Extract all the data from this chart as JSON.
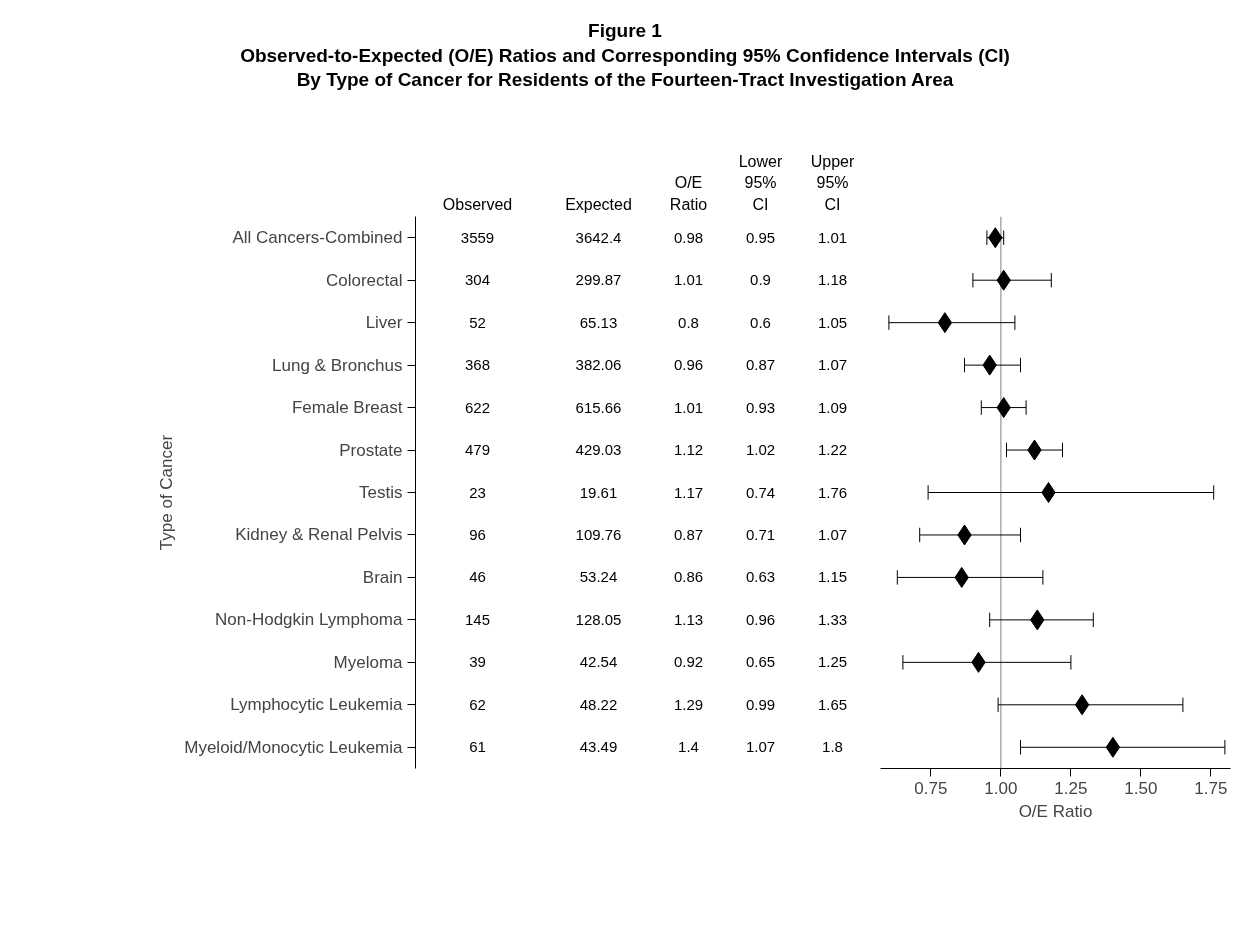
{
  "chart_data": [
    {
      "type": "other",
      "data_labels": true,
      "title": "Figure 1",
      "subtitle": "Observed-to-Expected (O/E) Ratios and Corresponding 95% Confidence Intervals (CI)\nBy Type of Cancer for Residents of the Fourteen-Tract Investigation Area",
      "ylabel": "Type of Cancer",
      "categories": [
        "All Cancers-Combined",
        "Colorectal",
        "Liver",
        "Lung & Bronchus",
        "Female Breast",
        "Prostate",
        "Testis",
        "Kidney & Renal Pelvis",
        "Brain",
        "Non-Hodgkin Lymphoma",
        "Myeloma",
        "Lymphocytic Leukemia",
        "Myeloid/Monocytic Leukemia"
      ],
      "series": [
        {
          "name": "Observed",
          "values": [
            3559,
            304,
            52,
            368,
            622,
            479,
            23,
            96,
            46,
            145,
            39,
            62,
            61
          ]
        },
        {
          "name": "Expected",
          "values": [
            3642.4,
            299.87,
            65.13,
            382.06,
            615.66,
            429.03,
            19.61,
            109.76,
            53.24,
            128.05,
            42.54,
            48.22,
            43.49
          ]
        },
        {
          "name": "O/E Ratio",
          "values": [
            0.98,
            1.01,
            0.8,
            0.96,
            1.01,
            1.12,
            1.17,
            0.87,
            0.86,
            1.13,
            0.92,
            1.29,
            1.4
          ]
        },
        {
          "name": "Lower 95% CI",
          "values": [
            0.95,
            0.9,
            0.6,
            0.87,
            0.93,
            1.02,
            0.74,
            0.71,
            0.63,
            0.96,
            0.65,
            0.99,
            1.07
          ]
        },
        {
          "name": "Upper 95% CI",
          "values": [
            1.01,
            1.18,
            1.05,
            1.07,
            1.09,
            1.22,
            1.76,
            1.07,
            1.15,
            1.33,
            1.25,
            1.65,
            1.8
          ]
        }
      ]
    },
    {
      "type": "scatter",
      "orientation": "horizontal",
      "xlabel": "O/E Ratio",
      "tick_labels": "x",
      "marker": "diamond",
      "xlim": [
        0.57,
        1.82
      ],
      "xticks": [
        {
          "value": 0.75,
          "label": "0.75"
        },
        {
          "value": 1,
          "label": "1.00"
        },
        {
          "value": 1.25,
          "label": "1.25"
        },
        {
          "value": 1.5,
          "label": "1.50"
        },
        {
          "value": 1.75,
          "label": "1.75"
        }
      ],
      "ref_lines": [
        {
          "axis": "x",
          "value": 1,
          "color": "#808080"
        }
      ],
      "series": [
        {
          "color": "#000000",
          "values": [
            0.98,
            1.01,
            0.8,
            0.96,
            1.01,
            1.12,
            1.17,
            0.87,
            0.86,
            1.13,
            0.92,
            1.29,
            1.4
          ],
          "errors": [
            [
              0.95,
              1.01
            ],
            [
              0.9,
              1.18
            ],
            [
              0.6,
              1.05
            ],
            [
              0.87,
              1.07
            ],
            [
              0.93,
              1.09
            ],
            [
              1.02,
              1.22
            ],
            [
              0.74,
              1.76
            ],
            [
              0.71,
              1.07
            ],
            [
              0.63,
              1.15
            ],
            [
              0.96,
              1.33
            ],
            [
              0.65,
              1.25
            ],
            [
              0.99,
              1.65
            ],
            [
              1.07,
              1.8
            ]
          ]
        }
      ]
    }
  ]
}
